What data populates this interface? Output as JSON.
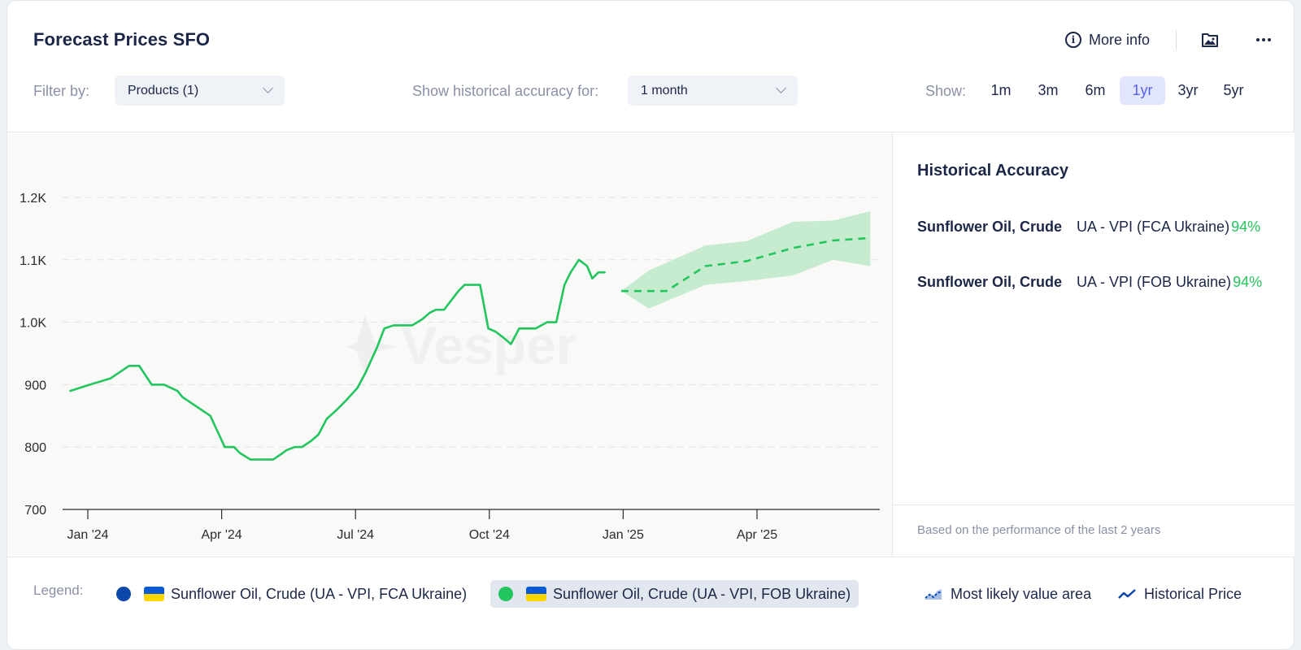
{
  "header": {
    "title": "Forecast Prices SFO",
    "more_info_label": "More info",
    "info_glyph": "i",
    "icons": [
      "info-icon",
      "image-icon",
      "more-dots-icon"
    ]
  },
  "filters": {
    "filter_by_label": "Filter by:",
    "products_value": "Products (1)",
    "accuracy_label": "Show historical accuracy for:",
    "accuracy_value": "1 month",
    "show_label": "Show:",
    "ranges": [
      {
        "label": "1m",
        "active": false
      },
      {
        "label": "3m",
        "active": false
      },
      {
        "label": "6m",
        "active": false
      },
      {
        "label": "1yr",
        "active": true
      },
      {
        "label": "3yr",
        "active": false
      },
      {
        "label": "5yr",
        "active": false
      }
    ]
  },
  "watermark": "Vesper",
  "chart_data": {
    "type": "line",
    "title": "Forecast Prices SFO",
    "xlabel": "",
    "ylabel": "",
    "ylim": [
      700,
      1200
    ],
    "yticks": [
      {
        "value": 700,
        "label": "700"
      },
      {
        "value": 800,
        "label": "800"
      },
      {
        "value": 900,
        "label": "900"
      },
      {
        "value": 1000,
        "label": "1.0K"
      },
      {
        "value": 1100,
        "label": "1.1K"
      },
      {
        "value": 1200,
        "label": "1.2K"
      }
    ],
    "x_unit": "weeks since Jan '24",
    "xlim": [
      -2,
      70.5
    ],
    "xticks": [
      {
        "value": 0,
        "label": "Jan '24"
      },
      {
        "value": 13,
        "label": "Apr '24"
      },
      {
        "value": 26,
        "label": "Jul '24"
      },
      {
        "value": 39,
        "label": "Oct '24"
      },
      {
        "value": 52,
        "label": "Jan '25"
      },
      {
        "value": 65,
        "label": "Apr '25"
      }
    ],
    "grid": true,
    "series": [
      {
        "name": "Sunflower Oil, Crude (UA - VPI, FOB Ukraine) — Historical Price",
        "style": "solid",
        "color": "#22c55e",
        "x": [
          -1.7,
          0.2,
          1.2,
          2.2,
          3.1,
          4.0,
          5.0,
          6.2,
          7.4,
          8.7,
          9.2,
          10.1,
          11.0,
          11.9,
          12.6,
          13.3,
          14.2,
          14.8,
          15.8,
          16.5,
          17.4,
          18.0,
          18.9,
          19.3,
          20.1,
          20.8,
          21.7,
          22.4,
          23.2,
          24.2,
          25.1,
          26.2,
          27.0,
          28.1,
          28.8,
          29.7,
          30.2,
          30.9,
          31.5,
          32.0,
          32.5,
          33.2,
          33.8,
          34.6,
          35.3,
          36.0,
          36.6,
          37.2,
          38.1,
          38.9,
          39.6,
          40.4,
          41.1,
          41.9,
          42.9,
          43.5,
          44.6,
          45.5,
          46.3,
          46.9,
          47.7,
          48.5,
          49.0,
          49.6,
          50.2
        ],
        "y": [
          890,
          900,
          905,
          910,
          920,
          930,
          930,
          900,
          900,
          890,
          880,
          870,
          860,
          850,
          825,
          800,
          800,
          790,
          780,
          780,
          780,
          780,
          790,
          795,
          800,
          800,
          810,
          820,
          845,
          860,
          875,
          895,
          920,
          960,
          990,
          995,
          995,
          995,
          995,
          1000,
          1005,
          1015,
          1020,
          1020,
          1035,
          1050,
          1060,
          1060,
          1060,
          990,
          985,
          975,
          965,
          990,
          990,
          990,
          1000,
          1000,
          1060,
          1080,
          1100,
          1090,
          1070,
          1080,
          1080
        ]
      },
      {
        "name": "Forecast (most likely value)",
        "style": "dashed",
        "color": "#22c55e",
        "x": [
          51.8,
          56.2,
          60.0,
          64.0,
          68.5,
          72.4,
          76.0
        ],
        "y": [
          1050,
          1050,
          1090,
          1098,
          1119,
          1131,
          1135
        ]
      }
    ],
    "band": {
      "name": "Most likely value area",
      "color": "#22c55e",
      "x": [
        51.8,
        54.5,
        60.0,
        64.0,
        68.5,
        72.4,
        76.0
      ],
      "upper": [
        1050,
        1083,
        1123,
        1130,
        1161,
        1163,
        1178
      ],
      "lower": [
        1050,
        1022,
        1060,
        1066,
        1075,
        1100,
        1090
      ]
    },
    "legend_position": "bottom"
  },
  "side_panel": {
    "title": "Historical Accuracy",
    "rows": [
      {
        "product": "Sunflower Oil, Crude",
        "source": "UA - VPI (FCA Ukraine)",
        "accuracy": "94%"
      },
      {
        "product": "Sunflower Oil, Crude",
        "source": "UA - VPI (FOB Ukraine)",
        "accuracy": "94%"
      }
    ],
    "footer": "Based on the performance of the last 2 years"
  },
  "legend": {
    "label": "Legend:",
    "items": [
      {
        "label": "Sunflower Oil, Crude (UA - VPI, FCA Ukraine)",
        "dot_color": "#0a47a9",
        "flag": "ua-flag-icon",
        "active": false
      },
      {
        "label": "Sunflower Oil, Crude (UA - VPI, FOB Ukraine)",
        "dot_color": "#22c55e",
        "flag": "ua-flag-icon",
        "active": true
      }
    ],
    "keys": [
      {
        "label": "Most likely value area",
        "icon": "area-chart-icon"
      },
      {
        "label": "Historical Price",
        "icon": "line-chart-icon"
      }
    ]
  },
  "colors": {
    "primary_text": "#1c2747",
    "muted_text": "#8a91a6",
    "accent": "#5a63e6",
    "series_green": "#22c55e",
    "band_green": "#c6ebcf",
    "legend_blue": "#0a47a9",
    "flag_blue": "#0a5bd3",
    "flag_yellow": "#ffd500"
  }
}
